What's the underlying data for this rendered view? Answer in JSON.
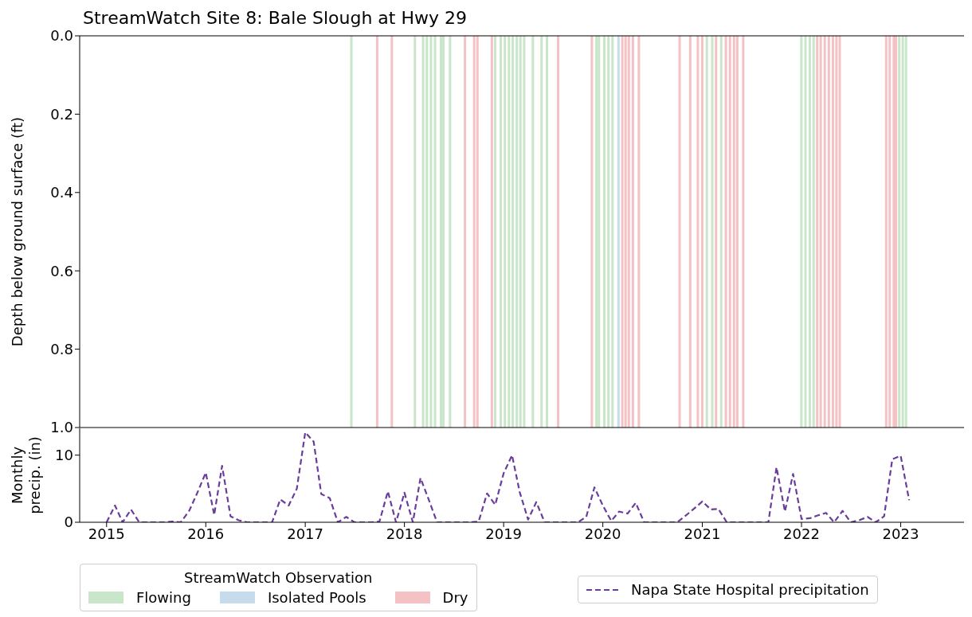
{
  "chart_data": [
    {
      "type": "bar",
      "title": "StreamWatch Site 8: Bale Slough at Hwy 29",
      "ylabel": "Depth below ground surface (ft)",
      "xlim": [
        "2014-09-24",
        "2023-08-22"
      ],
      "ylim": [
        1.0,
        0.0
      ],
      "yticks": [
        {
          "value": 0,
          "label": "0.0"
        },
        0.2,
        0.4,
        0.6,
        0.8,
        {
          "value": 1,
          "label": "1.0"
        }
      ],
      "tick_labels": "y",
      "legend": "bottom",
      "legend_title": "StreamWatch Observation",
      "series": [
        {
          "name": "Flowing",
          "color": "#c9e6c9",
          "x": [
            "2017-06-20",
            "2018-02-09",
            "2018-03-11",
            "2018-03-25",
            "2018-04-09",
            "2018-04-24",
            "2018-05-16",
            "2018-05-25",
            "2018-06-18",
            "2018-12-01",
            "2018-12-22",
            "2019-01-06",
            "2019-01-21",
            "2019-02-04",
            "2019-02-19",
            "2019-03-04",
            "2019-03-18",
            "2019-04-19",
            "2019-05-21",
            "2019-06-10",
            "2019-12-09",
            "2019-12-18",
            "2020-01-07",
            "2020-01-22",
            "2020-02-06",
            "2021-01-18",
            "2021-02-07",
            "2021-03-12",
            "2022-01-01",
            "2022-01-16",
            "2022-02-01",
            "2022-02-15",
            "2022-12-27",
            "2023-01-09",
            "2023-01-21"
          ],
          "values": [
            1,
            1,
            1,
            1,
            1,
            1,
            1,
            1,
            1,
            1,
            1,
            1,
            1,
            1,
            1,
            1,
            1,
            1,
            1,
            1,
            1,
            1,
            1,
            1,
            1,
            1,
            1,
            1,
            1,
            1,
            1,
            1,
            1,
            1,
            1
          ]
        },
        {
          "name": "Isolated Pools",
          "color": "#c6dcec",
          "x": [
            "2020-02-28"
          ],
          "values": [
            1
          ]
        },
        {
          "name": "Dry",
          "color": "#f4c2c5",
          "x": [
            "2017-09-23",
            "2017-11-16",
            "2018-08-12",
            "2018-09-15",
            "2018-09-27",
            "2018-11-19",
            "2019-07-21",
            "2019-11-22",
            "2020-03-13",
            "2020-03-25",
            "2020-04-06",
            "2020-04-21",
            "2020-05-13",
            "2020-10-10",
            "2020-11-18",
            "2020-12-16",
            "2021-01-01",
            "2021-02-21",
            "2021-03-29",
            "2021-04-13",
            "2021-04-28",
            "2021-05-10",
            "2021-06-01",
            "2022-02-28",
            "2022-03-13",
            "2022-03-28",
            "2022-04-12",
            "2022-04-27",
            "2022-05-10",
            "2022-05-22",
            "2022-11-09",
            "2022-11-22",
            "2022-12-07",
            "2022-12-15"
          ],
          "values": [
            1,
            1,
            1,
            1,
            1,
            1,
            1,
            1,
            1,
            1,
            1,
            1,
            1,
            1,
            1,
            1,
            1,
            1,
            1,
            1,
            1,
            1,
            1,
            1,
            1,
            1,
            1,
            1,
            1,
            1,
            1,
            1,
            1,
            1
          ]
        }
      ]
    },
    {
      "type": "line",
      "ylabel": "Monthly\nprecip. (in)",
      "xlim": [
        "2014-09-24",
        "2023-08-22"
      ],
      "xticks": [
        "2015",
        "2016",
        "2017",
        "2018",
        "2019",
        "2020",
        "2021",
        "2022",
        "2023"
      ],
      "ylim": [
        0,
        14
      ],
      "yticks": [
        0,
        10
      ],
      "legend": "bottom right",
      "series": [
        {
          "name": "Napa State Hospital precipitation",
          "color": "#6a3d9a",
          "line_style": "dashed",
          "x": [
            "2015-01",
            "2015-02",
            "2015-03",
            "2015-04",
            "2015-05",
            "2015-06",
            "2015-07",
            "2015-08",
            "2015-09",
            "2015-10",
            "2015-11",
            "2015-12",
            "2016-01",
            "2016-02",
            "2016-03",
            "2016-04",
            "2016-05",
            "2016-06",
            "2016-07",
            "2016-08",
            "2016-09",
            "2016-10",
            "2016-11",
            "2016-12",
            "2017-01",
            "2017-02",
            "2017-03",
            "2017-04",
            "2017-05",
            "2017-06",
            "2017-07",
            "2017-08",
            "2017-09",
            "2017-10",
            "2017-11",
            "2017-12",
            "2018-01",
            "2018-02",
            "2018-03",
            "2018-04",
            "2018-05",
            "2018-06",
            "2018-07",
            "2018-08",
            "2018-09",
            "2018-10",
            "2018-11",
            "2018-12",
            "2019-01",
            "2019-02",
            "2019-03",
            "2019-04",
            "2019-05",
            "2019-06",
            "2019-07",
            "2019-08",
            "2019-09",
            "2019-10",
            "2019-11",
            "2019-12",
            "2020-01",
            "2020-02",
            "2020-03",
            "2020-04",
            "2020-05",
            "2020-06",
            "2020-07",
            "2020-08",
            "2020-09",
            "2020-10",
            "2020-11",
            "2020-12",
            "2021-01",
            "2021-02",
            "2021-03",
            "2021-04",
            "2021-05",
            "2021-06",
            "2021-07",
            "2021-08",
            "2021-09",
            "2021-10",
            "2021-11",
            "2021-12",
            "2022-01",
            "2022-02",
            "2022-03",
            "2022-04",
            "2022-05",
            "2022-06",
            "2022-07",
            "2022-08",
            "2022-09",
            "2022-10",
            "2022-11",
            "2022-12",
            "2023-01",
            "2023-02"
          ],
          "values": [
            0,
            2.5,
            0,
            1.9,
            0,
            0,
            0,
            0,
            0.1,
            0,
            1.7,
            4.4,
            7.4,
            1.1,
            8.4,
            0.9,
            0.3,
            0,
            0,
            0,
            0,
            3.4,
            2.5,
            5.0,
            13.4,
            12.0,
            4.2,
            3.6,
            0,
            0.8,
            0,
            0,
            0,
            0.1,
            4.6,
            0,
            4.4,
            0,
            6.6,
            3.3,
            0,
            0,
            0,
            0,
            0,
            0.1,
            4.3,
            2.6,
            7.3,
            10.0,
            4.5,
            0.4,
            3.0,
            0,
            0,
            0,
            0,
            0,
            0.8,
            5.2,
            2.5,
            0.2,
            1.6,
            1.3,
            2.9,
            0,
            0,
            0,
            0,
            0,
            1.0,
            2.0,
            3.1,
            1.9,
            2.0,
            0,
            0,
            0,
            0,
            0,
            0,
            8.2,
            1.6,
            7.2,
            0.5,
            0.6,
            1.0,
            1.4,
            0,
            1.7,
            0,
            0.3,
            0.8,
            0,
            0.9,
            9.4,
            9.9,
            3.3
          ]
        }
      ]
    }
  ]
}
